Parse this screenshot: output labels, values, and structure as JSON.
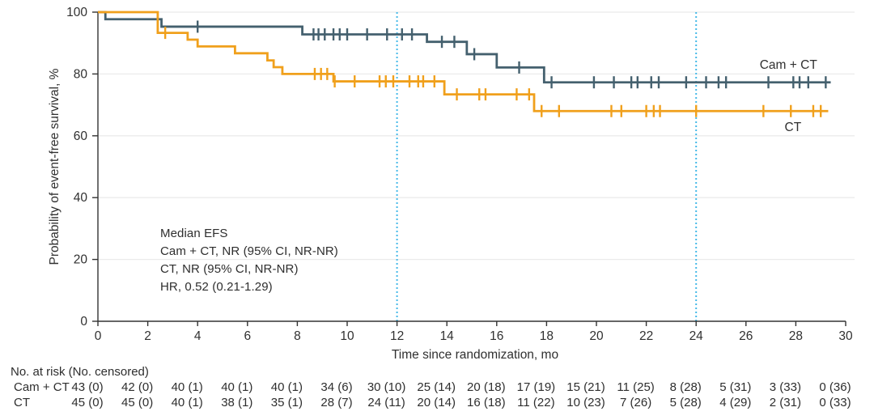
{
  "figure": {
    "risk_table": {
      "header": "No. at risk (No. censored)",
      "time_points": [
        0,
        2,
        4,
        6,
        8,
        10,
        12,
        14,
        16,
        18,
        20,
        22,
        24,
        26,
        28,
        30
      ],
      "rows": [
        {
          "label": "Cam + CT",
          "values": [
            "43 (0)",
            "42 (0)",
            "40 (1)",
            "40 (1)",
            "40 (1)",
            "34 (6)",
            "30 (10)",
            "25 (14)",
            "20 (18)",
            "17 (19)",
            "15 (21)",
            "11 (25)",
            "8 (28)",
            "5 (31)",
            "3 (33)",
            "0 (36)"
          ]
        },
        {
          "label": "CT",
          "values": [
            "45 (0)",
            "45 (0)",
            "40 (1)",
            "38 (1)",
            "35 (1)",
            "28 (7)",
            "24 (11)",
            "20 (14)",
            "16 (18)",
            "11 (22)",
            "10 (23)",
            "7 (26)",
            "5 (28)",
            "4 (29)",
            "2 (31)",
            "0 (33)"
          ]
        }
      ]
    }
  },
  "chart_data": {
    "type": "line",
    "subtype": "kaplan_meier_step",
    "title": "",
    "xlabel": "Time since randomization, mo",
    "ylabel": "Probability of event-free survival, %",
    "xlim": [
      0,
      30
    ],
    "ylim": [
      0,
      100
    ],
    "xticks": [
      0,
      2,
      4,
      6,
      8,
      10,
      12,
      14,
      16,
      18,
      20,
      22,
      24,
      26,
      28,
      30
    ],
    "yticks": [
      0,
      20,
      40,
      60,
      80,
      100
    ],
    "grid": "horizontal",
    "grid_color": "#ebebeb",
    "axis_color": "#333333",
    "reference_lines_x": [
      12,
      24
    ],
    "reference_line_color": "#45b9e8",
    "annotation": {
      "lines": [
        "Median EFS",
        "Cam + CT, NR (95% CI, NR-NR)",
        "CT, NR (95% CI, NR-NR)",
        "HR, 0.52 (0.21-1.29)"
      ]
    },
    "series": [
      {
        "name": "Cam + CT",
        "color": "#44606e",
        "label_x": 26.55,
        "label_y_pct": 81.7,
        "end_t": 29.4,
        "steps": [
          [
            0,
            100
          ],
          [
            0.3,
            97.7
          ],
          [
            2.55,
            95.3
          ],
          [
            8.2,
            92.8
          ],
          [
            13.2,
            90.4
          ],
          [
            14.8,
            86.4
          ],
          [
            16.0,
            82.1
          ],
          [
            17.9,
            77.3
          ]
        ],
        "censor_times": [
          4.0,
          8.65,
          8.85,
          9.1,
          9.45,
          9.7,
          10.0,
          10.8,
          11.6,
          12.2,
          12.6,
          13.8,
          14.3,
          15.1,
          16.9,
          18.2,
          19.9,
          20.7,
          21.4,
          21.65,
          22.2,
          22.5,
          23.6,
          24.4,
          24.9,
          25.2,
          26.9,
          27.9,
          28.15,
          28.5,
          29.2
        ]
      },
      {
        "name": "CT",
        "color": "#f0a01c",
        "label_x": 27.55,
        "label_y_pct": 61.5,
        "end_t": 29.3,
        "steps": [
          [
            0,
            100
          ],
          [
            2.4,
            93.3
          ],
          [
            3.6,
            91.1
          ],
          [
            4.0,
            88.9
          ],
          [
            5.5,
            86.7
          ],
          [
            6.8,
            84.4
          ],
          [
            7.05,
            82.2
          ],
          [
            7.4,
            80.0
          ],
          [
            9.45,
            77.6
          ],
          [
            13.9,
            73.4
          ],
          [
            17.5,
            68.0
          ]
        ],
        "censor_times": [
          2.7,
          8.7,
          8.95,
          9.2,
          9.5,
          10.3,
          11.3,
          11.55,
          11.85,
          12.5,
          12.85,
          13.05,
          13.5,
          14.4,
          15.3,
          15.55,
          16.8,
          17.3,
          17.8,
          18.5,
          20.6,
          21.0,
          22.0,
          22.3,
          22.55,
          24.0,
          26.7,
          27.8,
          28.7,
          29.0
        ]
      }
    ]
  }
}
